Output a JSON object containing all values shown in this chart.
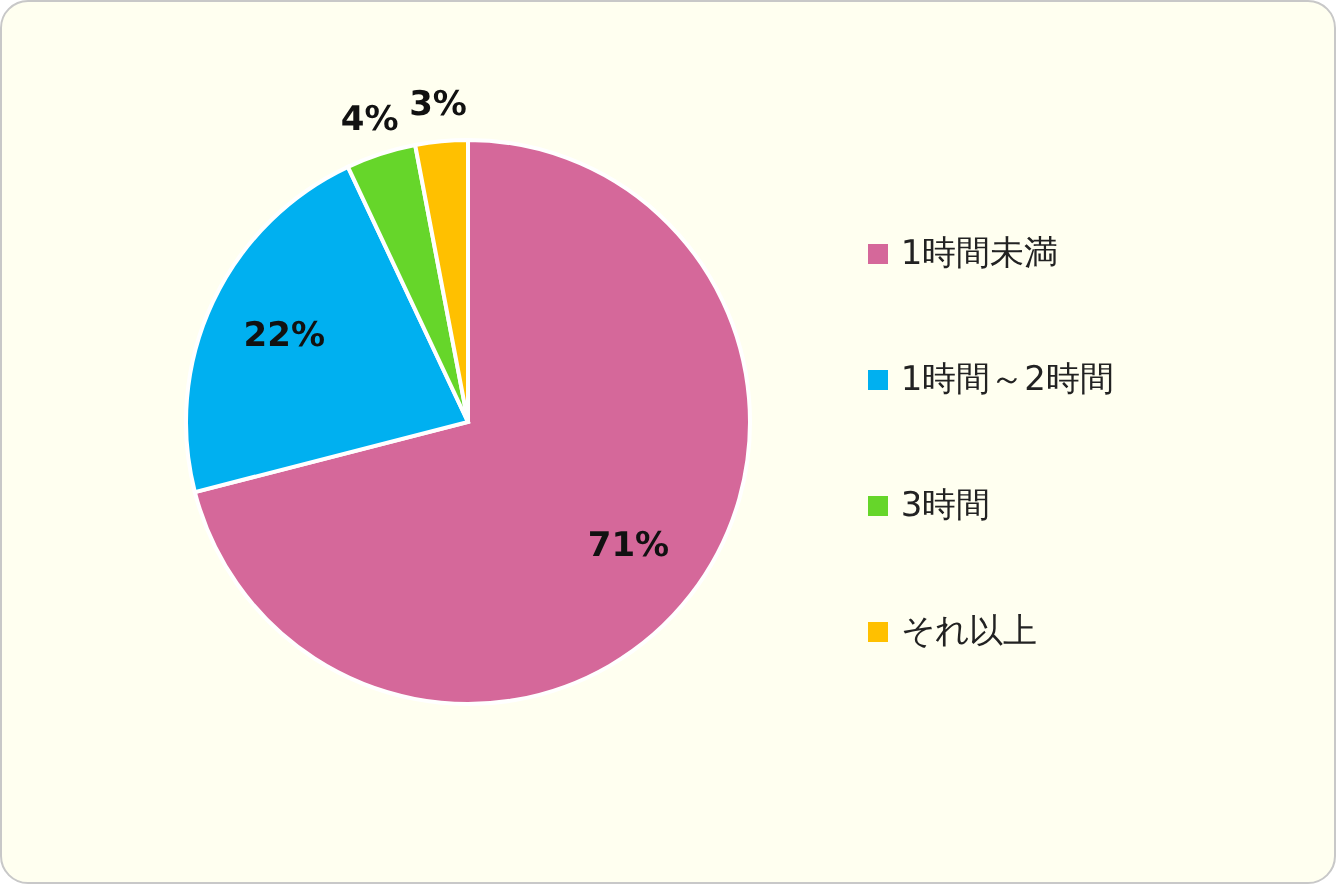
{
  "chart_data": {
    "type": "pie",
    "categories": [
      "1時間未満",
      "1時間～2時間",
      "3時間",
      "それ以上"
    ],
    "values": [
      71,
      22,
      4,
      3
    ],
    "colors": [
      "#d5689a",
      "#00b0f0",
      "#66d62a",
      "#ffc000"
    ],
    "value_labels": [
      "71%",
      "22%",
      "4%",
      "3%"
    ],
    "legend": "right"
  }
}
